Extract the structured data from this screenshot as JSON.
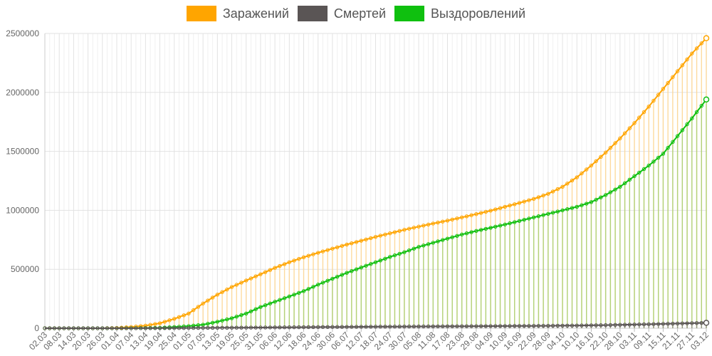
{
  "chart_data": {
    "type": "line",
    "title": "",
    "xlabel": "",
    "ylabel": "",
    "ylim": [
      0,
      2500000
    ],
    "y_ticks": [
      "0",
      "500000",
      "1000000",
      "1500000",
      "2000000",
      "2500000"
    ],
    "x_ticks": [
      "02.03",
      "08.03",
      "14.03",
      "20.03",
      "26.03",
      "01.04",
      "07.04",
      "13.04",
      "19.04",
      "25.04",
      "01.05",
      "07.05",
      "13.05",
      "19.05",
      "25.05",
      "31.05",
      "06.06",
      "12.06",
      "18.06",
      "24.06",
      "30.06",
      "06.07",
      "12.07",
      "18.07",
      "24.07",
      "30.07",
      "05.08",
      "11.08",
      "17.08",
      "23.08",
      "29.08",
      "04.09",
      "10.09",
      "16.09",
      "22.09",
      "28.09",
      "04.10",
      "10.10",
      "16.10",
      "22.10",
      "28.10",
      "03.11",
      "09.11",
      "15.11",
      "21.11",
      "27.11",
      "03.12"
    ],
    "grid": true,
    "legend_position": "top",
    "series": [
      {
        "name": "Заражений",
        "color": "#ffa500",
        "fill": "#ffd58a",
        "values": [
          0,
          0,
          0,
          0,
          0,
          2500,
          10000,
          22000,
          42000,
          80000,
          125000,
          210000,
          285000,
          350000,
          405000,
          458000,
          512000,
          560000,
          602000,
          640000,
          675000,
          710000,
          742000,
          775000,
          805000,
          835000,
          862000,
          888000,
          913000,
          940000,
          968000,
          997000,
          1030000,
          1063000,
          1097000,
          1140000,
          1200000,
          1280000,
          1380000,
          1490000,
          1610000,
          1740000,
          1880000,
          2030000,
          2180000,
          2330000,
          2460000
        ]
      },
      {
        "name": "Смертей",
        "color": "#5a5555",
        "fill": "#8a8585",
        "values": [
          0,
          0,
          0,
          0,
          0,
          30,
          150,
          400,
          800,
          1500,
          2300,
          3000,
          3800,
          4500,
          5300,
          6000,
          7000,
          8000,
          9000,
          9800,
          10500,
          11200,
          12000,
          12800,
          13500,
          14200,
          14900,
          15500,
          16200,
          16900,
          17500,
          18100,
          18700,
          19300,
          20000,
          20800,
          21800,
          23000,
          24500,
          26500,
          29000,
          31500,
          34000,
          37000,
          40000,
          43000,
          46000
        ]
      },
      {
        "name": "Выздоровлений",
        "color": "#0fc00f",
        "fill": "#9fd070",
        "values": [
          0,
          0,
          0,
          0,
          0,
          100,
          500,
          1500,
          3500,
          10000,
          18000,
          30000,
          55000,
          85000,
          125000,
          180000,
          225000,
          270000,
          315000,
          370000,
          420000,
          470000,
          515000,
          560000,
          605000,
          645000,
          690000,
          725000,
          760000,
          795000,
          825000,
          852000,
          880000,
          910000,
          940000,
          970000,
          1000000,
          1030000,
          1070000,
          1130000,
          1200000,
          1290000,
          1380000,
          1480000,
          1630000,
          1780000,
          1940000
        ]
      }
    ]
  }
}
